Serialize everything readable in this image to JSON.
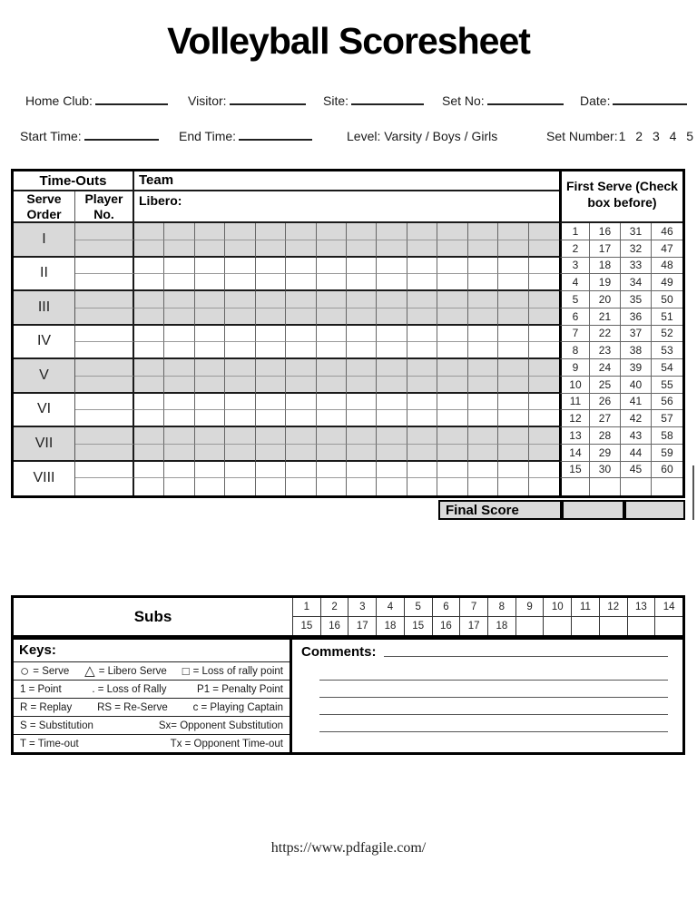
{
  "title": "Volleyball Scoresheet",
  "fields": {
    "home_club": "Home Club:",
    "visitor": "Visitor:",
    "site": "Site:",
    "set_no": "Set No:",
    "date": "Date:",
    "start_time": "Start Time:",
    "end_time": "End Time:",
    "level": "Level: Varsity / Boys / Girls",
    "set_number_label": "Set Number:",
    "set_number_options": "1 2 3 4 5"
  },
  "main_table": {
    "timeouts_header": "Time-Outs",
    "team_header": "Team",
    "serve_order_header": "Serve Order",
    "player_no_header": "Player No.",
    "libero_label": "Libero:",
    "serve_orders": [
      "I",
      "II",
      "III",
      "IV",
      "V",
      "VI",
      "VII",
      "VIII"
    ],
    "grid_columns": 14,
    "final_score_label": "Final Score"
  },
  "first_serve": {
    "header": "First Serve (Check box before)",
    "rows": [
      [
        1,
        16,
        31,
        46
      ],
      [
        2,
        17,
        32,
        47
      ],
      [
        3,
        18,
        33,
        48
      ],
      [
        4,
        19,
        34,
        49
      ],
      [
        5,
        20,
        35,
        50
      ],
      [
        6,
        21,
        36,
        51
      ],
      [
        7,
        22,
        37,
        52
      ],
      [
        8,
        23,
        38,
        53
      ],
      [
        9,
        24,
        39,
        54
      ],
      [
        10,
        25,
        40,
        55
      ],
      [
        11,
        26,
        41,
        56
      ],
      [
        12,
        27,
        42,
        57
      ],
      [
        13,
        28,
        43,
        58
      ],
      [
        14,
        29,
        44,
        59
      ],
      [
        15,
        30,
        45,
        60
      ]
    ]
  },
  "subs": {
    "label": "Subs",
    "row1": [
      "1",
      "2",
      "3",
      "4",
      "5",
      "6",
      "7",
      "8",
      "9",
      "10",
      "11",
      "12",
      "13",
      "14"
    ],
    "row2": [
      "15",
      "16",
      "17",
      "18",
      "15",
      "16",
      "17",
      "18",
      "",
      "",
      "",
      "",
      "",
      ""
    ]
  },
  "keys": {
    "title": "Keys:",
    "rows": [
      {
        "items": [
          "○ = Serve",
          "△ = Libero Serve",
          "□ =  Loss of rally point"
        ]
      },
      {
        "items": [
          "1 = Point",
          ". = Loss of Rally",
          "P1 = Penalty Point"
        ]
      },
      {
        "items": [
          "R = Replay",
          "RS = Re-Serve",
          "c = Playing Captain"
        ]
      },
      {
        "items": [
          "S = Substitution",
          "Sx= Opponent Substitution"
        ]
      },
      {
        "items": [
          "T = Time-out",
          "Tx = Opponent Time-out"
        ]
      }
    ]
  },
  "comments": {
    "label": "Comments:"
  },
  "footer": {
    "url": "https://www.pdfagile.com/"
  },
  "colors": {
    "row_shade": "#d9d9d9",
    "border": "#000000"
  }
}
